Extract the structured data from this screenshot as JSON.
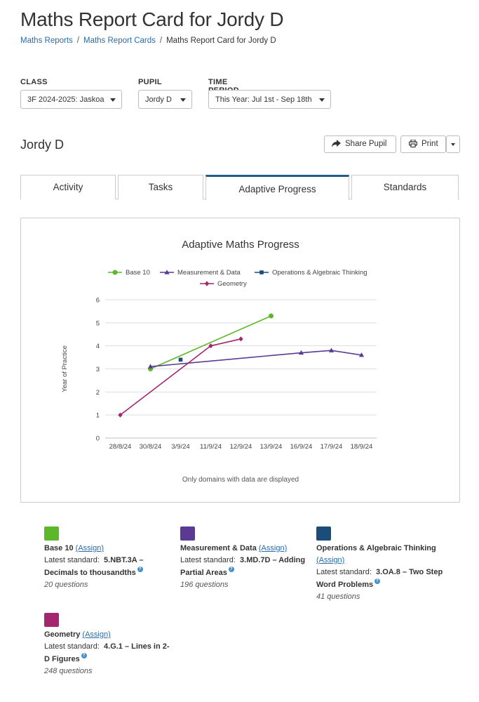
{
  "page": {
    "title": "Maths Report Card for Jordy D",
    "breadcrumb": [
      "Maths Reports",
      "Maths Report Cards",
      "Maths Report Card for Jordy D"
    ]
  },
  "filters": {
    "class": {
      "label": "CLASS",
      "value": "3F 2024-2025: Jaskoa"
    },
    "pupil": {
      "label": "PUPIL",
      "value": "Jordy D"
    },
    "period": {
      "label": "TIME PERIOD",
      "value": "This Year: Jul 1st - Sep 18th"
    }
  },
  "pupil_header": {
    "name": "Jordy D",
    "share_label": "Share Pupil",
    "print_label": "Print"
  },
  "tabs": [
    "Activity",
    "Tasks",
    "Adaptive Progress",
    "Standards"
  ],
  "active_tab": "Adaptive Progress",
  "chart_note": "Only domains with data are displayed",
  "chart_data": {
    "type": "line",
    "title": "Adaptive Maths Progress",
    "ylabel": "Year of Practice",
    "xlabel": "",
    "categories": [
      "28/8/24",
      "30/8/24",
      "3/9/24",
      "11/9/24",
      "12/9/24",
      "13/9/24",
      "16/9/24",
      "17/9/24",
      "18/9/24"
    ],
    "yticks": [
      0,
      1,
      2,
      3,
      4,
      5,
      6
    ],
    "ylim": [
      0,
      6
    ],
    "legend_position": "top",
    "series": [
      {
        "name": "Base 10",
        "color": "#5cb82a",
        "marker": "circle",
        "points": [
          [
            "30/8/24",
            3.0
          ],
          [
            "13/9/24",
            5.3
          ]
        ]
      },
      {
        "name": "Measurement & Data",
        "color": "#5b3a96",
        "marker": "triangle",
        "points": [
          [
            "30/8/24",
            3.1
          ],
          [
            "16/9/24",
            3.7
          ],
          [
            "17/9/24",
            3.8
          ],
          [
            "18/9/24",
            3.6
          ]
        ]
      },
      {
        "name": "Operations & Algebraic Thinking",
        "color": "#1b4d78",
        "marker": "square",
        "points": [
          [
            "3/9/24",
            3.4
          ]
        ]
      },
      {
        "name": "Geometry",
        "color": "#a3266f",
        "marker": "diamond",
        "points": [
          [
            "28/8/24",
            1.0
          ],
          [
            "11/9/24",
            4.0
          ],
          [
            "12/9/24",
            4.3
          ]
        ]
      }
    ]
  },
  "domains": [
    {
      "name": "Base 10",
      "assign": "(Assign)",
      "color": "#5cb82a",
      "std_label": "Latest standard:",
      "std_code": "5.NBT.3A –",
      "std_text": "Decimals to thousandths",
      "questions": "20 questions"
    },
    {
      "name": "Measurement & Data",
      "assign": "(Assign)",
      "color": "#5b3a96",
      "std_label": "Latest standard:",
      "std_code": "3.MD.7D – Adding",
      "std_text": "Partial Areas",
      "questions": "196 questions"
    },
    {
      "name": "Operations & Algebraic Thinking",
      "assign": "(Assign)",
      "color": "#1b4d78",
      "std_label": "Latest standard:",
      "std_code": "3.OA.8 – Two Step",
      "std_text": "Word Problems",
      "questions": "41 questions"
    },
    {
      "name": "Geometry",
      "assign": "(Assign)",
      "color": "#a3266f",
      "std_label": "Latest standard:",
      "std_code": "4.G.1 – Lines in 2-",
      "std_text": "D Figures",
      "questions": "248 questions"
    }
  ]
}
